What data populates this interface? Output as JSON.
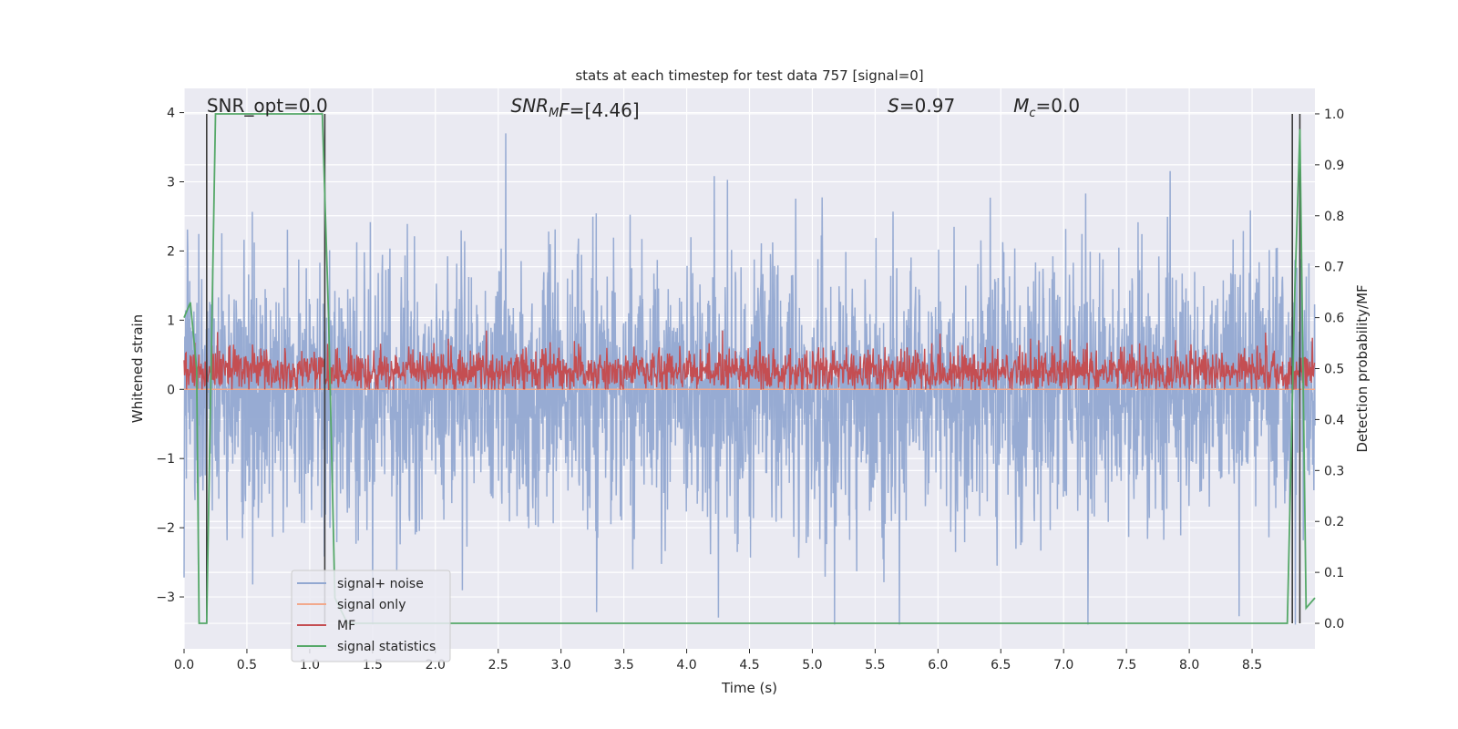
{
  "chart_data": {
    "type": "line",
    "title": "stats at each timestep for test data 757 [signal=0]",
    "xlabel": "Time (s)",
    "ylabel_left": "Whitened strain",
    "ylabel_right": "Detection probability/MF",
    "xlim": [
      0.0,
      9.0
    ],
    "ylim_left": [
      -3.75,
      4.35
    ],
    "ylim_right": [
      -0.05,
      1.05
    ],
    "x_ticks": [
      0.0,
      0.5,
      1.0,
      1.5,
      2.0,
      2.5,
      3.0,
      3.5,
      4.0,
      4.5,
      5.0,
      5.5,
      6.0,
      6.5,
      7.0,
      7.5,
      8.0,
      8.5
    ],
    "x_tick_labels": [
      "0.0",
      "0.5",
      "1.0",
      "1.5",
      "2.0",
      "2.5",
      "3.0",
      "3.5",
      "4.0",
      "4.5",
      "5.0",
      "5.5",
      "6.0",
      "6.5",
      "7.0",
      "7.5",
      "8.0",
      "8.5"
    ],
    "y_left_ticks": [
      4,
      3,
      2,
      1,
      0,
      -1,
      -2,
      -3
    ],
    "y_left_tick_labels": [
      "4",
      "3",
      "2",
      "1",
      "0",
      "−1",
      "−2",
      "−3"
    ],
    "y_right_ticks": [
      1.0,
      0.9,
      0.8,
      0.7,
      0.6,
      0.5,
      0.4,
      0.3,
      0.2,
      0.1,
      0.0
    ],
    "y_right_tick_labels": [
      "1.0",
      "0.9",
      "0.8",
      "0.7",
      "0.6",
      "0.5",
      "0.4",
      "0.3",
      "0.2",
      "0.1",
      "0.0"
    ],
    "grid": true,
    "legend_placement": "lower-left",
    "annotations": [
      {
        "text": "SNR_opt=0.0",
        "x": 0.18,
        "y": 4.1,
        "style": "normal"
      },
      {
        "text": "SNR_MF=[4.46]",
        "main": "SNR",
        "sub": "M",
        "rest": "F=[4.46]",
        "x": 2.6,
        "y": 4.1,
        "style": "math"
      },
      {
        "text": "S=0.97",
        "main": "S",
        "sub": "",
        "rest": "=0.97",
        "x": 5.6,
        "y": 4.1,
        "style": "math"
      },
      {
        "text": "M_c=0.0",
        "main": "M",
        "sub": "c",
        "rest": "=0.0",
        "x": 6.6,
        "y": 4.1,
        "style": "math"
      }
    ],
    "vertical_lines": [
      0.18,
      1.12,
      8.82,
      8.88
    ],
    "series": [
      {
        "name": "signal+ noise",
        "color": "#92a8d1",
        "kind": "noise",
        "amplitude_range": [
          -3.4,
          3.7
        ]
      },
      {
        "name": "signal only",
        "color": "#f2a98c",
        "kind": "flat",
        "value": 0.0
      },
      {
        "name": "MF",
        "color": "#c44e52",
        "kind": "mf",
        "range": [
          0.0,
          0.85
        ]
      },
      {
        "name": "signal statistics",
        "color": "#55a868",
        "kind": "step",
        "x": [
          0.0,
          0.05,
          0.1,
          0.12,
          0.18,
          0.25,
          1.1,
          1.15,
          1.2,
          1.3,
          8.78,
          8.84,
          8.88,
          8.93,
          9.0
        ],
        "y": [
          0.6,
          0.63,
          0.5,
          0.0,
          0.0,
          1.0,
          1.0,
          0.6,
          0.05,
          0.0,
          0.0,
          0.65,
          0.97,
          0.03,
          0.05
        ]
      }
    ]
  },
  "plot": {
    "background": "#eaeaf2",
    "grid_color": "#ffffff",
    "vline_color": "#3b3b3b"
  }
}
